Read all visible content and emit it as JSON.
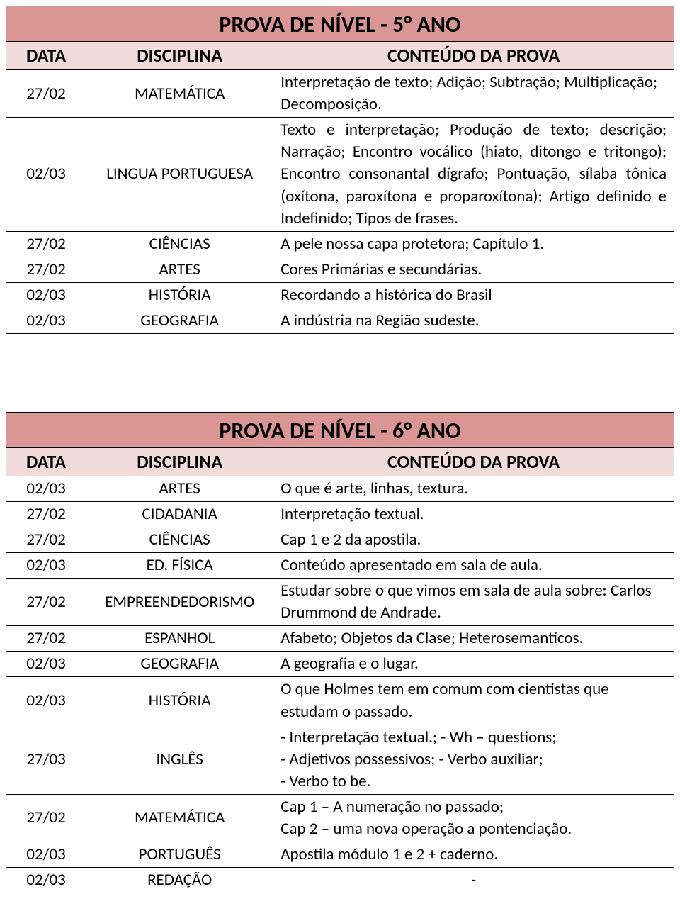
{
  "colors": {
    "title_bg": "#d99694",
    "header_bg": "#f2dbdb",
    "border": "#000000",
    "text": "#000000",
    "page_bg": "#ffffff"
  },
  "columns": {
    "data": "DATA",
    "disciplina": "DISCIPLINA",
    "conteudo": "CONTEÚDO DA PROVA"
  },
  "tables": [
    {
      "title": "PROVA DE NÍVEL - 5° ANO",
      "rows": [
        {
          "data": "27/02",
          "disciplina": "MATEMÁTICA",
          "conteudo": "Interpretação de texto; Adição; Subtração; Multiplicação; Decomposição.",
          "justify": false
        },
        {
          "data": "02/03",
          "disciplina": "LINGUA PORTUGUESA",
          "conteudo": "Texto e interpretação; Produção de texto; descrição; Narração; Encontro vocálico (hiato, ditongo e tritongo); Encontro consonantal dígrafo; Pontuação, sílaba tônica (oxítona, paroxítona e proparoxítona); Artigo definido e Indefinido; Tipos de frases.",
          "justify": true
        },
        {
          "data": "27/02",
          "disciplina": "CIÊNCIAS",
          "conteudo": "A pele nossa capa protetora; Capítulo 1.",
          "justify": false
        },
        {
          "data": "27/02",
          "disciplina": "ARTES",
          "conteudo": "Cores Primárias e secundárias.",
          "justify": false
        },
        {
          "data": "02/03",
          "disciplina": "HISTÓRIA",
          "conteudo": "Recordando a histórica do Brasil",
          "justify": false
        },
        {
          "data": "02/03",
          "disciplina": "GEOGRAFIA",
          "conteudo": "A indústria na Região sudeste.",
          "justify": false
        }
      ]
    },
    {
      "title": "PROVA DE NÍVEL - 6° ANO",
      "rows": [
        {
          "data": "02/03",
          "disciplina": "ARTES",
          "conteudo": "O que é arte, linhas, textura.",
          "justify": false
        },
        {
          "data": "27/02",
          "disciplina": "CIDADANIA",
          "conteudo": "Interpretação textual.",
          "justify": false
        },
        {
          "data": "27/02",
          "disciplina": "CIÊNCIAS",
          "conteudo": "Cap 1 e 2 da apostila.",
          "justify": false
        },
        {
          "data": "02/03",
          "disciplina": "ED. FÍSICA",
          "conteudo": "Conteúdo apresentado em sala de aula.",
          "justify": false
        },
        {
          "data": "27/02",
          "disciplina": "EMPREENDEDORISMO",
          "conteudo": "Estudar sobre o que vimos em sala de aula sobre: Carlos Drummond de Andrade.",
          "justify": false
        },
        {
          "data": "27/02",
          "disciplina": "ESPANHOL",
          "conteudo": "Afabeto; Objetos da Clase; Heterosemanticos.",
          "justify": false
        },
        {
          "data": "02/03",
          "disciplina": "GEOGRAFIA",
          "conteudo": "A geografia e o lugar.",
          "justify": false
        },
        {
          "data": "02/03",
          "disciplina": "HISTÓRIA",
          "conteudo": "O que Holmes tem em comum com cientistas que estudam o passado.",
          "justify": false
        },
        {
          "data": "27/03",
          "disciplina": "INGLÊS",
          "conteudo": " - Interpretação textual.;  - Wh – questions;\n - Adjetivos possessivos; - Verbo auxiliar;\n - Verbo to be.",
          "justify": false
        },
        {
          "data": "27/02",
          "disciplina": "MATEMÁTICA",
          "conteudo": "Cap 1 – A numeração no passado;\nCap 2 – uma nova operação a pontenciação.",
          "justify": false
        },
        {
          "data": "02/03",
          "disciplina": "PORTUGUÊS",
          "conteudo": "Apostila módulo 1 e 2 + caderno.",
          "justify": false
        },
        {
          "data": "02/03",
          "disciplina": "REDAÇÃO",
          "conteudo": "-",
          "justify": false,
          "center": true
        }
      ]
    }
  ]
}
